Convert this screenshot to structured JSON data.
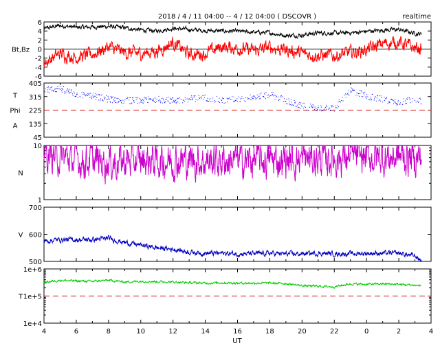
{
  "title": "2018 / 4 / 11   04:00 --  4 / 12  04:00 ( DSCOVR )",
  "realtime_label": "realtime",
  "x_axis": {
    "label": "UT",
    "range": [
      4,
      28
    ],
    "ticks": [
      "4",
      "6",
      "8",
      "10",
      "12",
      "14",
      "16",
      "18",
      "20",
      "22",
      "0",
      "2",
      "4"
    ],
    "data_end": 27.4
  },
  "colors": {
    "bt": "#000000",
    "bz": "#ff0000",
    "phi_theta": "#0000ff",
    "density": "#cc00cc",
    "speed": "#0000c0",
    "temperature": "#00cc00",
    "ref_line": "#cc0000"
  },
  "chart_data": [
    {
      "type": "line",
      "panel": "bt_bz",
      "ylabel": "Bt,Bz",
      "ylim": [
        -6,
        6
      ],
      "yticks": [
        "6",
        "4",
        "2",
        "0",
        "-2",
        "-4",
        "-6"
      ],
      "zero_line": 0,
      "series": [
        {
          "name": "Bt",
          "x": [
            4,
            5,
            6,
            7,
            8,
            9,
            10,
            11,
            12,
            13,
            14,
            15,
            16,
            17,
            18,
            19,
            20,
            21,
            22,
            23,
            24,
            25,
            26,
            27,
            27.4
          ],
          "y": [
            4.5,
            5.2,
            4.8,
            4.9,
            5.0,
            4.7,
            4.2,
            4.0,
            4.6,
            4.3,
            4.1,
            4.0,
            3.9,
            3.7,
            3.6,
            3.0,
            3.1,
            3.6,
            3.5,
            3.6,
            3.9,
            4.2,
            4.3,
            3.5,
            3.3
          ]
        },
        {
          "name": "Bz",
          "x": [
            4,
            5,
            6,
            7,
            8,
            9,
            10,
            11,
            12,
            13,
            14,
            15,
            16,
            17,
            18,
            19,
            20,
            21,
            22,
            23,
            24,
            25,
            26,
            27,
            27.4
          ],
          "y": [
            -3.0,
            -1.0,
            -1.8,
            -1.2,
            0.5,
            -0.8,
            -1.0,
            -0.5,
            1.5,
            -1.2,
            -1.0,
            0.5,
            0.2,
            -0.4,
            0.4,
            -0.2,
            -1.0,
            -1.4,
            -1.5,
            -0.8,
            -0.2,
            1.2,
            1.5,
            0.2,
            0.0
          ]
        }
      ]
    },
    {
      "type": "scatter",
      "panel": "phi_theta",
      "ylabels": [
        "T",
        "Phi",
        "A"
      ],
      "ylim": [
        45,
        405
      ],
      "yticks": [
        "405",
        "315",
        "225",
        "135",
        "45"
      ],
      "ref_line": 225,
      "series": [
        {
          "name": "Phi",
          "x": [
            4,
            5,
            6,
            7,
            8,
            9,
            10,
            11,
            12,
            13,
            14,
            15,
            16,
            17,
            18,
            19,
            20,
            21,
            22,
            23,
            24,
            25,
            26,
            27,
            27.4
          ],
          "y": [
            360,
            370,
            330,
            320,
            300,
            290,
            290,
            300,
            290,
            300,
            310,
            290,
            300,
            310,
            330,
            290,
            250,
            240,
            240,
            360,
            320,
            300,
            280,
            300,
            280
          ]
        }
      ]
    },
    {
      "type": "line",
      "panel": "density",
      "ylabel": "N",
      "scale": "log",
      "ylim": [
        1,
        10
      ],
      "yticks": [
        "10",
        "1"
      ],
      "series": [
        {
          "name": "N",
          "x": [
            4,
            5,
            6,
            7,
            8,
            9,
            10,
            11,
            12,
            13,
            14,
            15,
            16,
            17,
            18,
            19,
            20,
            21,
            22,
            23,
            24,
            25,
            26,
            27,
            27.4
          ],
          "y": [
            7.0,
            6.3,
            5.5,
            5.2,
            5.0,
            5.2,
            5.4,
            5.3,
            5.4,
            5.3,
            5.2,
            5.3,
            5.3,
            5.4,
            5.3,
            5.4,
            5.6,
            5.7,
            5.8,
            6.1,
            6.1,
            6.0,
            6.1,
            6.0,
            5.9
          ]
        }
      ]
    },
    {
      "type": "line",
      "panel": "speed",
      "ylabel": "V",
      "ylim": [
        500,
        700
      ],
      "yticks": [
        "700",
        "600",
        "500"
      ],
      "series": [
        {
          "name": "V",
          "x": [
            4,
            5,
            6,
            7,
            8,
            9,
            10,
            11,
            12,
            13,
            14,
            15,
            16,
            17,
            18,
            19,
            20,
            21,
            22,
            23,
            24,
            25,
            26,
            27,
            27.4
          ],
          "y": [
            575,
            580,
            580,
            580,
            585,
            570,
            560,
            550,
            545,
            535,
            530,
            530,
            528,
            528,
            530,
            527,
            528,
            530,
            528,
            528,
            530,
            530,
            530,
            520,
            503
          ]
        }
      ]
    },
    {
      "type": "line",
      "panel": "temperature",
      "ylabel": "T",
      "scale": "log",
      "ylim": [
        10000,
        1000000
      ],
      "yticks": [
        "1e+6",
        "1e+5",
        "1e+4"
      ],
      "ref_line": 100000,
      "series": [
        {
          "name": "T",
          "x": [
            4,
            5,
            6,
            7,
            8,
            9,
            10,
            11,
            12,
            13,
            14,
            15,
            16,
            17,
            18,
            19,
            20,
            21,
            22,
            23,
            24,
            25,
            26,
            27,
            27.4
          ],
          "y": [
            320000,
            380000,
            360000,
            350000,
            380000,
            330000,
            350000,
            340000,
            330000,
            310000,
            300000,
            310000,
            300000,
            300000,
            300000,
            290000,
            240000,
            230000,
            220000,
            280000,
            270000,
            280000,
            270000,
            250000,
            240000
          ]
        }
      ]
    }
  ]
}
